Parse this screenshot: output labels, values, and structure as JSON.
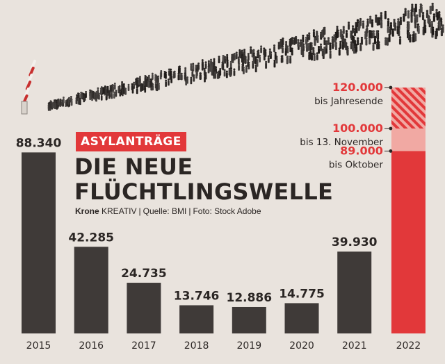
{
  "badge": "ASYLANTRÄGE",
  "headline": {
    "line1": "DIE NEUE",
    "line2": "FLÜCHTLINGSWELLE"
  },
  "credit": {
    "brand": "Krone",
    "brand_suffix": "KREATIV",
    "source": "Quelle: BMI",
    "photo": "Foto: Stock Adobe"
  },
  "colors": {
    "bar": "#3f3a38",
    "accent": "#e2383a",
    "accent_light": "#f1a9a3",
    "text": "#2b2624",
    "background": "#e9e3dd"
  },
  "chart_data": {
    "type": "bar",
    "categories": [
      "2015",
      "2016",
      "2017",
      "2018",
      "2019",
      "2020",
      "2021",
      "2022"
    ],
    "values": [
      88340,
      42285,
      24735,
      13746,
      12886,
      14775,
      39930,
      89000
    ],
    "value_labels": [
      "88.340",
      "42.285",
      "24.735",
      "13.746",
      "12.886",
      "14.775",
      "39.930",
      ""
    ],
    "ylim": [
      0,
      120000
    ],
    "grid": false,
    "highlight_bar": {
      "category": "2022",
      "segments": [
        {
          "value": 89000,
          "label": "89.000",
          "caption": "bis Oktober",
          "style": "solid"
        },
        {
          "value": 100000,
          "label": "100.000",
          "caption": "bis 13. November",
          "style": "light"
        },
        {
          "value": 120000,
          "label": "120.000",
          "caption": "bis Jahresende",
          "style": "hatched"
        }
      ]
    }
  }
}
